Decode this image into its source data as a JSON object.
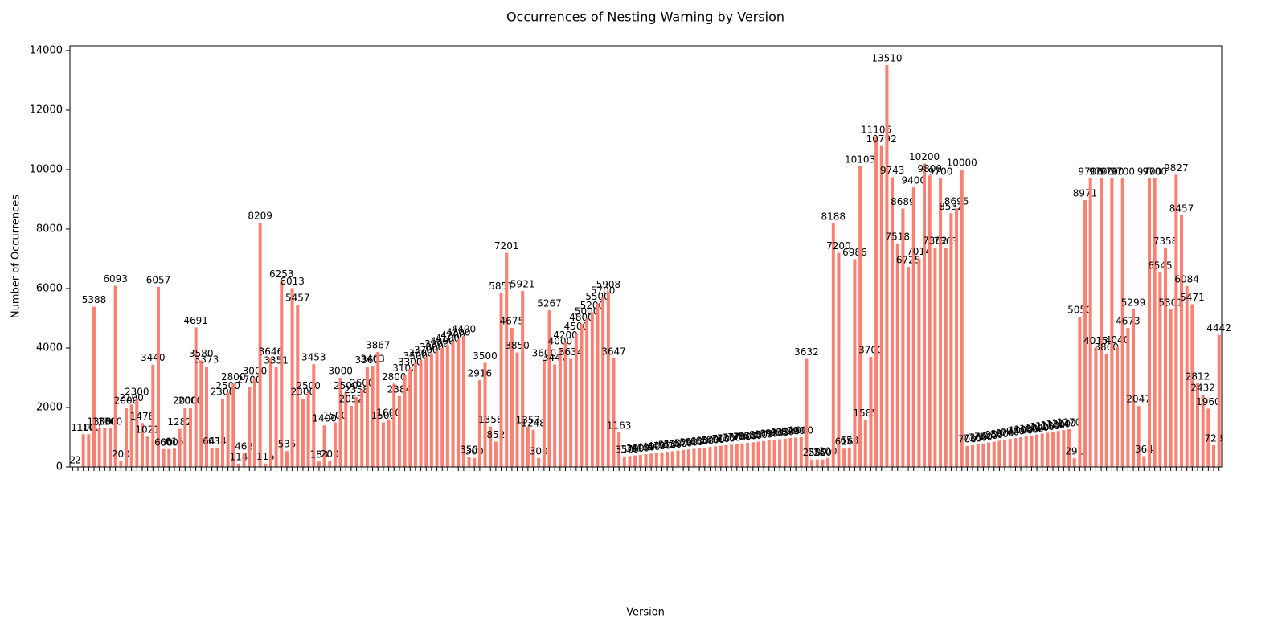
{
  "chart_data": {
    "type": "bar",
    "title": "Occurrences of Nesting Warning by Version",
    "xlabel": "Version",
    "ylabel": "Number of Occurrences",
    "color": "#fa8072",
    "ylim": [
      0,
      14160
    ],
    "yticks": [
      0,
      2000,
      4000,
      6000,
      8000,
      10000,
      12000,
      14000
    ],
    "values": [
      2,
      2,
      1100,
      1100,
      5388,
      1300,
      1300,
      1300,
      6093,
      200,
      2000,
      2100,
      2300,
      1478,
      1021,
      3440,
      6057,
      600,
      600,
      616,
      1282,
      2000,
      2000,
      4691,
      3580,
      3373,
      641,
      634,
      2300,
      2500,
      2800,
      114,
      462,
      2700,
      3000,
      8209,
      115,
      3646,
      3351,
      6253,
      535,
      6013,
      5457,
      2300,
      2500,
      3453,
      183,
      1400,
      200,
      1500,
      3000,
      2500,
      2052,
      2358,
      2600,
      3360,
      3403,
      3867,
      1500,
      1600,
      2800,
      2384,
      3100,
      3300,
      3500,
      3600,
      3700,
      3800,
      3900,
      4000,
      4100,
      4200,
      4300,
      4400,
      350,
      300,
      2916,
      3500,
      1358,
      852,
      5851,
      7201,
      4675,
      3850,
      5921,
      1353,
      1248,
      300,
      3600,
      5267,
      3447,
      4000,
      4200,
      3634,
      4500,
      4800,
      5000,
      5200,
      5500,
      5700,
      5908,
      3647,
      1163,
      350,
      370,
      390,
      410,
      430,
      450,
      470,
      490,
      510,
      530,
      550,
      570,
      590,
      610,
      630,
      650,
      670,
      690,
      710,
      730,
      750,
      770,
      790,
      810,
      830,
      850,
      870,
      890,
      910,
      930,
      950,
      970,
      990,
      1000,
      3632,
      250,
      250,
      250,
      300,
      8188,
      7200,
      616,
      658,
      6986,
      10103,
      1585,
      3700,
      11106,
      10792,
      13510,
      9743,
      7518,
      8689,
      6725,
      9400,
      7014,
      10200,
      9800,
      7382,
      9700,
      7363,
      8532,
      8695,
      10000,
      700,
      730,
      760,
      790,
      820,
      850,
      880,
      910,
      940,
      970,
      1000,
      1030,
      1060,
      1090,
      1120,
      1150,
      1180,
      1210,
      1240,
      1270,
      291,
      5050,
      8971,
      9700,
      4015,
      9700,
      3800,
      9700,
      4040,
      9700,
      4673,
      5299,
      2047,
      364,
      9700,
      9700,
      6545,
      7358,
      5301,
      9827,
      8457,
      6084,
      5471,
      2812,
      2432,
      1960,
      728,
      4442
    ]
  }
}
